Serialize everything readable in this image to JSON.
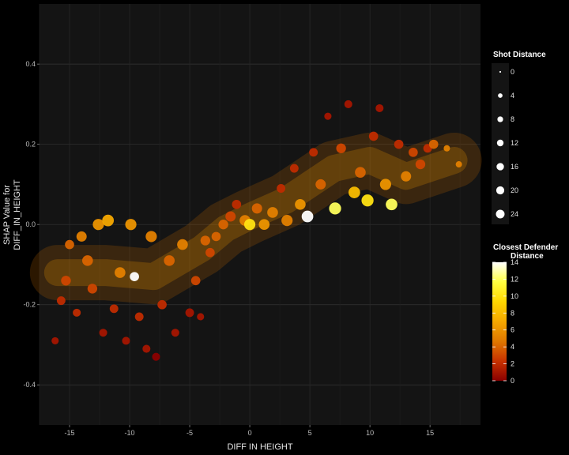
{
  "chart_data": {
    "type": "scatter",
    "xlabel": "DIFF IN HEIGHT",
    "ylabel_lines": [
      "SHAP Value for",
      "DIFF_IN_HEIGHT"
    ],
    "xlim": [
      -17.5,
      19.2
    ],
    "ylim": [
      -0.5,
      0.55
    ],
    "xticks": [
      -15,
      -10,
      -5,
      0,
      5,
      10,
      15
    ],
    "yticks": [
      -0.4,
      -0.2,
      0.0,
      0.2,
      0.4
    ],
    "xtick_labels": [
      "-15",
      "-10",
      "-5",
      "0",
      "5",
      "10",
      "15"
    ],
    "ytick_labels": [
      "-0.4",
      "-0.2",
      "0.0",
      "0.2",
      "0.4"
    ],
    "background_color": "#141414",
    "grid_color": "#333333",
    "size_legend": {
      "title": "Shot Distance",
      "values": [
        0,
        4,
        8,
        12,
        16,
        20,
        24
      ],
      "labels": [
        "0",
        "4",
        "8",
        "12",
        "16",
        "20",
        "24"
      ]
    },
    "color_legend": {
      "title_lines": [
        "Closest Defender",
        "Distance"
      ],
      "range": [
        0,
        14
      ],
      "ticks": [
        0,
        2,
        4,
        6,
        8,
        10,
        12,
        14
      ],
      "tick_labels": [
        "0",
        "2",
        "4",
        "6",
        "8",
        "10",
        "12",
        "14"
      ],
      "color_stops": [
        "#8b0000",
        "#c83200",
        "#e07800",
        "#f5a800",
        "#ffd700",
        "#ffff40",
        "#ffffff"
      ]
    },
    "trend": [
      {
        "x": -16,
        "y": -0.12
      },
      {
        "x": -12,
        "y": -0.12
      },
      {
        "x": -8,
        "y": -0.13
      },
      {
        "x": -4,
        "y": -0.06
      },
      {
        "x": -2,
        "y": -0.01
      },
      {
        "x": 0,
        "y": 0.02
      },
      {
        "x": 3,
        "y": 0.06
      },
      {
        "x": 7,
        "y": 0.14
      },
      {
        "x": 10,
        "y": 0.16
      },
      {
        "x": 13,
        "y": 0.12
      },
      {
        "x": 17,
        "y": 0.16
      }
    ],
    "points": [
      {
        "x": -16.2,
        "y": -0.29,
        "size": 6,
        "color": 1
      },
      {
        "x": -15.7,
        "y": -0.19,
        "size": 10,
        "color": 2
      },
      {
        "x": -15.3,
        "y": -0.14,
        "size": 14,
        "color": 3
      },
      {
        "x": -15.0,
        "y": -0.05,
        "size": 12,
        "color": 4
      },
      {
        "x": -14.4,
        "y": -0.22,
        "size": 8,
        "color": 2
      },
      {
        "x": -14.0,
        "y": -0.03,
        "size": 16,
        "color": 5
      },
      {
        "x": -13.5,
        "y": -0.09,
        "size": 18,
        "color": 4
      },
      {
        "x": -13.1,
        "y": -0.16,
        "size": 14,
        "color": 3
      },
      {
        "x": -12.6,
        "y": 0.0,
        "size": 20,
        "color": 6
      },
      {
        "x": -12.2,
        "y": -0.27,
        "size": 8,
        "color": 1
      },
      {
        "x": -11.8,
        "y": 0.01,
        "size": 22,
        "color": 7
      },
      {
        "x": -11.3,
        "y": -0.21,
        "size": 10,
        "color": 2
      },
      {
        "x": -10.8,
        "y": -0.12,
        "size": 18,
        "color": 5
      },
      {
        "x": -10.3,
        "y": -0.29,
        "size": 8,
        "color": 1
      },
      {
        "x": -9.9,
        "y": 0.0,
        "size": 20,
        "color": 6
      },
      {
        "x": -9.6,
        "y": -0.13,
        "size": 12,
        "color": 14
      },
      {
        "x": -9.2,
        "y": -0.23,
        "size": 10,
        "color": 2
      },
      {
        "x": -8.6,
        "y": -0.31,
        "size": 8,
        "color": 1
      },
      {
        "x": -8.2,
        "y": -0.03,
        "size": 20,
        "color": 5
      },
      {
        "x": -7.8,
        "y": -0.33,
        "size": 8,
        "color": 0
      },
      {
        "x": -7.3,
        "y": -0.2,
        "size": 12,
        "color": 2
      },
      {
        "x": -6.7,
        "y": -0.09,
        "size": 18,
        "color": 4
      },
      {
        "x": -6.2,
        "y": -0.27,
        "size": 8,
        "color": 1
      },
      {
        "x": -5.6,
        "y": -0.05,
        "size": 18,
        "color": 5
      },
      {
        "x": -5.0,
        "y": -0.22,
        "size": 10,
        "color": 1
      },
      {
        "x": -4.5,
        "y": -0.14,
        "size": 12,
        "color": 3
      },
      {
        "x": -4.1,
        "y": -0.23,
        "size": 6,
        "color": 1
      },
      {
        "x": -3.7,
        "y": -0.04,
        "size": 14,
        "color": 4
      },
      {
        "x": -3.3,
        "y": -0.07,
        "size": 12,
        "color": 3
      },
      {
        "x": -2.8,
        "y": -0.03,
        "size": 12,
        "color": 4
      },
      {
        "x": -2.2,
        "y": 0.0,
        "size": 14,
        "color": 4
      },
      {
        "x": -1.6,
        "y": 0.02,
        "size": 16,
        "color": 3
      },
      {
        "x": -1.1,
        "y": 0.05,
        "size": 12,
        "color": 2
      },
      {
        "x": -0.4,
        "y": 0.01,
        "size": 18,
        "color": 5
      },
      {
        "x": 0.0,
        "y": 0.0,
        "size": 20,
        "color": 10
      },
      {
        "x": 0.6,
        "y": 0.04,
        "size": 16,
        "color": 4
      },
      {
        "x": 1.2,
        "y": 0.0,
        "size": 18,
        "color": 6
      },
      {
        "x": 1.9,
        "y": 0.03,
        "size": 18,
        "color": 5
      },
      {
        "x": 2.6,
        "y": 0.09,
        "size": 10,
        "color": 2
      },
      {
        "x": 3.1,
        "y": 0.01,
        "size": 20,
        "color": 5
      },
      {
        "x": 3.7,
        "y": 0.14,
        "size": 10,
        "color": 2
      },
      {
        "x": 4.2,
        "y": 0.05,
        "size": 18,
        "color": 6
      },
      {
        "x": 4.8,
        "y": 0.02,
        "size": 22,
        "color": 14
      },
      {
        "x": 5.3,
        "y": 0.18,
        "size": 10,
        "color": 2
      },
      {
        "x": 5.9,
        "y": 0.1,
        "size": 16,
        "color": 4
      },
      {
        "x": 6.5,
        "y": 0.27,
        "size": 6,
        "color": 1
      },
      {
        "x": 7.1,
        "y": 0.04,
        "size": 24,
        "color": 12
      },
      {
        "x": 7.6,
        "y": 0.19,
        "size": 14,
        "color": 3
      },
      {
        "x": 8.2,
        "y": 0.3,
        "size": 8,
        "color": 1
      },
      {
        "x": 8.7,
        "y": 0.08,
        "size": 22,
        "color": 8
      },
      {
        "x": 9.2,
        "y": 0.13,
        "size": 18,
        "color": 4
      },
      {
        "x": 9.8,
        "y": 0.06,
        "size": 24,
        "color": 10
      },
      {
        "x": 10.3,
        "y": 0.22,
        "size": 12,
        "color": 2
      },
      {
        "x": 10.8,
        "y": 0.29,
        "size": 8,
        "color": 1
      },
      {
        "x": 11.3,
        "y": 0.1,
        "size": 20,
        "color": 6
      },
      {
        "x": 11.8,
        "y": 0.05,
        "size": 22,
        "color": 12
      },
      {
        "x": 12.4,
        "y": 0.2,
        "size": 12,
        "color": 2
      },
      {
        "x": 13.0,
        "y": 0.12,
        "size": 16,
        "color": 5
      },
      {
        "x": 13.6,
        "y": 0.18,
        "size": 12,
        "color": 3
      },
      {
        "x": 14.2,
        "y": 0.15,
        "size": 14,
        "color": 3
      },
      {
        "x": 14.8,
        "y": 0.19,
        "size": 10,
        "color": 2
      },
      {
        "x": 15.3,
        "y": 0.2,
        "size": 12,
        "color": 4
      },
      {
        "x": 16.4,
        "y": 0.19,
        "size": 4,
        "color": 5
      },
      {
        "x": 17.4,
        "y": 0.15,
        "size": 4,
        "color": 5
      }
    ]
  }
}
